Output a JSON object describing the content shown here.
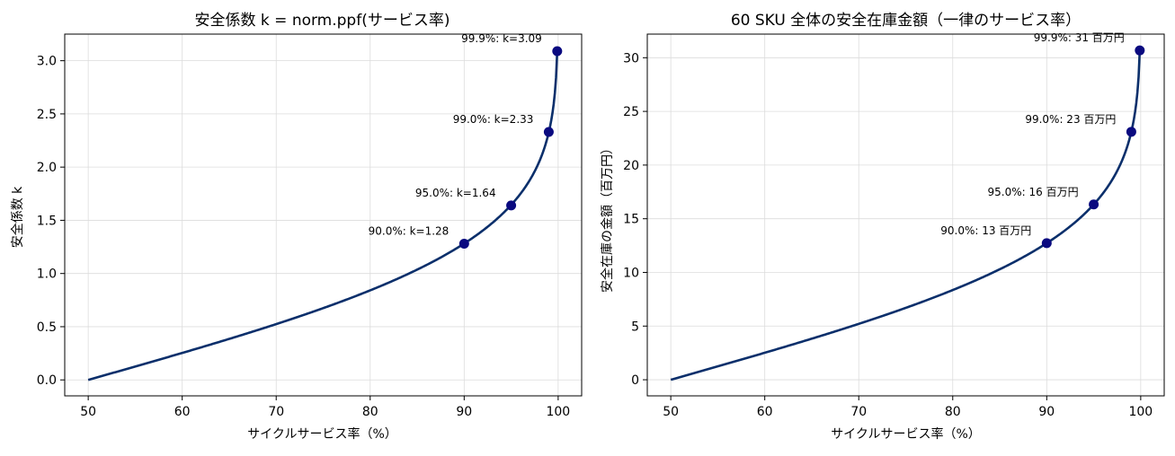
{
  "chart_data": [
    {
      "type": "line",
      "title": "安全係数 k = norm.ppf(サービス率)",
      "xlabel": "サイクルサービス率（%）",
      "ylabel": "安全係数 k",
      "xlim": [
        47.5,
        102.5
      ],
      "ylim": [
        -0.15,
        3.25
      ],
      "xticks": [
        50,
        60,
        70,
        80,
        90,
        100
      ],
      "yticks": [
        0.0,
        0.5,
        1.0,
        1.5,
        2.0,
        2.5,
        3.0
      ],
      "xtick_labels": [
        "50",
        "60",
        "70",
        "80",
        "90",
        "100"
      ],
      "ytick_labels": [
        "0.0",
        "0.5",
        "1.0",
        "1.5",
        "2.0",
        "2.5",
        "3.0"
      ],
      "grid": true,
      "color": "#0b2f6b",
      "marker_color": "#0a0a80",
      "scale": 1.0,
      "series": [
        {
          "x": [
            50,
            55,
            60,
            65,
            70,
            75,
            80,
            85,
            90,
            92,
            94,
            95,
            96,
            97,
            98,
            99,
            99.5,
            99.9
          ],
          "y": [
            0.0,
            0.126,
            0.253,
            0.385,
            0.524,
            0.674,
            0.842,
            1.036,
            1.282,
            1.405,
            1.555,
            1.645,
            1.751,
            1.881,
            2.054,
            2.326,
            2.576,
            3.09
          ]
        }
      ],
      "points": [
        {
          "x": 90,
          "y": 1.28,
          "label": "90.0%: k=1.28"
        },
        {
          "x": 95,
          "y": 1.64,
          "label": "95.0%: k=1.64"
        },
        {
          "x": 99,
          "y": 2.33,
          "label": "99.0%: k=2.33"
        },
        {
          "x": 99.9,
          "y": 3.09,
          "label": "99.9%: k=3.09"
        }
      ]
    },
    {
      "type": "line",
      "title": "60 SKU 全体の安全在庫金額（一律のサービス率）",
      "xlabel": "サイクルサービス率（%）",
      "ylabel": "安全在庫の金額（百万円）",
      "xlim": [
        47.5,
        102.5
      ],
      "ylim": [
        -1.5,
        32.2
      ],
      "xticks": [
        50,
        60,
        70,
        80,
        90,
        100
      ],
      "yticks": [
        0,
        5,
        10,
        15,
        20,
        25,
        30
      ],
      "xtick_labels": [
        "50",
        "60",
        "70",
        "80",
        "90",
        "100"
      ],
      "ytick_labels": [
        "0",
        "5",
        "10",
        "15",
        "20",
        "25",
        "30"
      ],
      "grid": true,
      "color": "#0b2f6b",
      "marker_color": "#0a0a80",
      "scale": 9.93,
      "series": [
        {
          "x": [
            50,
            55,
            60,
            65,
            70,
            75,
            80,
            85,
            90,
            92,
            94,
            95,
            96,
            97,
            98,
            99,
            99.5,
            99.9
          ],
          "y": [
            0.0,
            1.25,
            2.51,
            3.82,
            5.2,
            6.69,
            8.36,
            10.29,
            12.73,
            13.95,
            15.44,
            16.33,
            17.39,
            18.68,
            20.4,
            23.1,
            25.58,
            30.68
          ]
        }
      ],
      "points": [
        {
          "x": 90,
          "y": 12.73,
          "label": "90.0%: 13 百万円"
        },
        {
          "x": 95,
          "y": 16.33,
          "label": "95.0%: 16 百万円"
        },
        {
          "x": 99,
          "y": 23.1,
          "label": "99.0%: 23 百万円"
        },
        {
          "x": 99.9,
          "y": 30.68,
          "label": "99.9%: 31 百万円"
        }
      ]
    }
  ]
}
